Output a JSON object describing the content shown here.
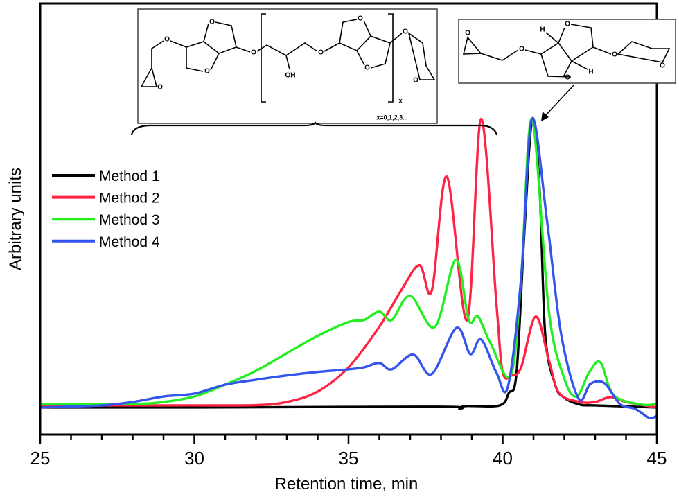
{
  "chart_data": {
    "type": "line",
    "title": "",
    "xlabel": "Retention time, min",
    "ylabel": "Arbitrary units",
    "xlim": [
      25,
      45
    ],
    "ylim": [
      -9.4,
      140
    ],
    "xticks": [
      25,
      30,
      35,
      40,
      45
    ],
    "xtick_labels": [
      "25",
      "30",
      "35",
      "40",
      "45"
    ],
    "minor_tick_step": 1,
    "grid": false,
    "legend_position": "left-middle",
    "series": [
      {
        "name": "Method 1",
        "color": "#000000",
        "points": [
          [
            25,
            0
          ],
          [
            30,
            0
          ],
          [
            35,
            0.2
          ],
          [
            38.4,
            0.2
          ],
          [
            38.6,
            -0.5
          ],
          [
            38.8,
            0.5
          ],
          [
            39.9,
            0.7
          ],
          [
            40.2,
            5
          ],
          [
            40.45,
            12
          ],
          [
            40.7,
            60
          ],
          [
            40.96,
            100
          ],
          [
            41.2,
            75
          ],
          [
            41.38,
            25.2
          ],
          [
            41.7,
            8
          ],
          [
            41.97,
            3.6
          ],
          [
            42.5,
            1
          ],
          [
            43,
            0.7
          ],
          [
            45,
            0
          ]
        ]
      },
      {
        "name": "Method 2",
        "color": "#ff2244",
        "points": [
          [
            25,
            0.7
          ],
          [
            30,
            0.7
          ],
          [
            32,
            0.8
          ],
          [
            33,
            1.9
          ],
          [
            34,
            5.5
          ],
          [
            35,
            13.9
          ],
          [
            36,
            28
          ],
          [
            36.7,
            40.4
          ],
          [
            37.3,
            49.3
          ],
          [
            37.7,
            40.4
          ],
          [
            38.19,
            80
          ],
          [
            38.85,
            30.3
          ],
          [
            39.3,
            100
          ],
          [
            39.8,
            35.6
          ],
          [
            40.0,
            12.3
          ],
          [
            40.3,
            11.1
          ],
          [
            40.6,
            13.9
          ],
          [
            41.07,
            31.5
          ],
          [
            41.5,
            16.3
          ],
          [
            41.83,
            5
          ],
          [
            42.5,
            1.9
          ],
          [
            43,
            1.9
          ],
          [
            43.5,
            3.6
          ],
          [
            44,
            1.9
          ],
          [
            45,
            0
          ]
        ]
      },
      {
        "name": "Method 3",
        "color": "#22ee22",
        "points": [
          [
            25,
            1.2
          ],
          [
            28,
            1.2
          ],
          [
            29,
            1.9
          ],
          [
            30,
            3.8
          ],
          [
            31,
            7.9
          ],
          [
            32,
            12.7
          ],
          [
            33,
            18.8
          ],
          [
            34,
            24.8
          ],
          [
            35,
            29.6
          ],
          [
            35.5,
            30.3
          ],
          [
            36,
            33.2
          ],
          [
            36.4,
            30.3
          ],
          [
            37,
            38.7
          ],
          [
            37.8,
            27.9
          ],
          [
            38.48,
            51.2
          ],
          [
            38.9,
            30.3
          ],
          [
            39.2,
            31.5
          ],
          [
            39.6,
            22.4
          ],
          [
            40.26,
            11.1
          ],
          [
            40.6,
            45
          ],
          [
            40.95,
            100
          ],
          [
            41.5,
            33.2
          ],
          [
            42,
            10
          ],
          [
            42.4,
            3.8
          ],
          [
            42.8,
            12
          ],
          [
            43.17,
            15.6
          ],
          [
            43.6,
            4.3
          ],
          [
            44.5,
            1
          ],
          [
            45,
            1.2
          ]
        ]
      },
      {
        "name": "Method 4",
        "color": "#3355ee",
        "points": [
          [
            25,
            0
          ],
          [
            27,
            0.7
          ],
          [
            28,
            1.9
          ],
          [
            29,
            3.8
          ],
          [
            30,
            4.8
          ],
          [
            31,
            7.9
          ],
          [
            32,
            9.6
          ],
          [
            33,
            11.1
          ],
          [
            34,
            12.3
          ],
          [
            35,
            13.2
          ],
          [
            35.5,
            13.9
          ],
          [
            36,
            15.4
          ],
          [
            36.4,
            13.2
          ],
          [
            37.1,
            18.3
          ],
          [
            37.7,
            11.6
          ],
          [
            38.5,
            27.6
          ],
          [
            38.95,
            18.5
          ],
          [
            39.3,
            23.6
          ],
          [
            39.8,
            12
          ],
          [
            40.17,
            7.2
          ],
          [
            40.6,
            45
          ],
          [
            40.95,
            100
          ],
          [
            41.45,
            63.7
          ],
          [
            41.9,
            25.2
          ],
          [
            42.46,
            3.1
          ],
          [
            42.85,
            8.2
          ],
          [
            43.3,
            8.4
          ],
          [
            43.8,
            1.2
          ],
          [
            44.3,
            -0.5
          ],
          [
            44.75,
            -3.6
          ],
          [
            45,
            -2.9
          ]
        ]
      }
    ],
    "annotations": {
      "oligomer_structure": {
        "atom_o": "O",
        "hydroxyl": "OH",
        "repeat_subscript": "x",
        "repeat_note": "x=0,1,2,3..."
      },
      "monomer_structure": {
        "atom_o": "O",
        "atom_h": "H"
      }
    }
  }
}
